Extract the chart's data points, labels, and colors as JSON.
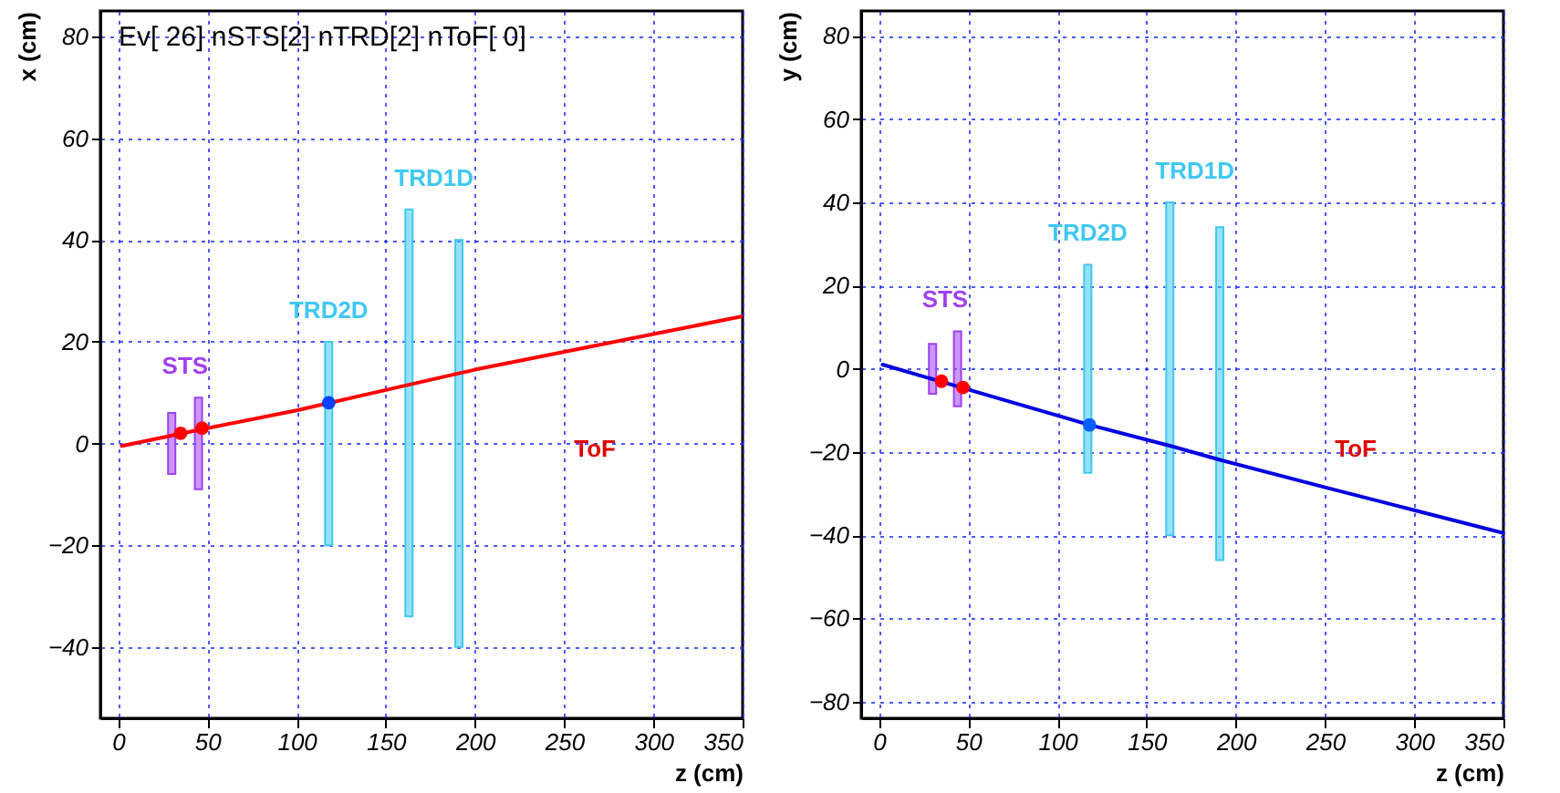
{
  "chart_data": [
    {
      "type": "line",
      "title": "Ev[ 26] nSTS[2] nTRD[2] nToF[ 0]",
      "xlabel": "z (cm)",
      "ylabel": "x (cm)",
      "xlim": [
        -10,
        350
      ],
      "ylim": [
        -54,
        85
      ],
      "xticks": [
        0,
        50,
        100,
        150,
        200,
        250,
        300,
        350
      ],
      "yticks": [
        -40,
        -20,
        0,
        20,
        40,
        60,
        80
      ],
      "grid": true,
      "annotations": [
        "ToF"
      ],
      "series": [
        {
          "type": "bar",
          "name": "STS",
          "color": "#a040f0",
          "x": [
            30,
            45
          ],
          "base": [
            -6,
            -9
          ],
          "values": [
            12,
            18
          ]
        },
        {
          "type": "bar",
          "name": "TRD2D",
          "color": "#40c8f0",
          "x": [
            118
          ],
          "base": [
            -20
          ],
          "values": [
            40
          ]
        },
        {
          "type": "bar",
          "name": "TRD1D",
          "color": "#40c8f0",
          "x": [
            163,
            191
          ],
          "base": [
            -34,
            -40
          ],
          "values": [
            80,
            80
          ]
        },
        {
          "color": "#ff0000",
          "x": [
            2,
            50,
            100,
            150,
            200,
            250,
            300,
            350
          ],
          "values": [
            -0.5,
            3,
            6.5,
            10.5,
            14.5,
            18,
            21.5,
            25
          ]
        },
        {
          "type": "scatter",
          "marker": "circle",
          "color": "#ff0000",
          "x": [
            35,
            47
          ],
          "values": [
            2,
            3
          ]
        },
        {
          "type": "scatter",
          "marker": "circle",
          "color": "#0040ff",
          "x": [
            118
          ],
          "values": [
            8
          ]
        }
      ]
    },
    {
      "type": "line",
      "xlabel": "z (cm)",
      "ylabel": "y (cm)",
      "xlim": [
        -10,
        350
      ],
      "ylim": [
        -84,
        86
      ],
      "xticks": [
        0,
        50,
        100,
        150,
        200,
        250,
        300,
        350
      ],
      "yticks": [
        -80,
        -60,
        -40,
        -20,
        0,
        20,
        40,
        60,
        80
      ],
      "grid": true,
      "annotations": [
        "ToF"
      ],
      "series": [
        {
          "type": "bar",
          "name": "STS",
          "color": "#a040f0",
          "x": [
            30,
            44
          ],
          "base": [
            -6,
            -9
          ],
          "values": [
            12,
            18
          ]
        },
        {
          "type": "bar",
          "name": "TRD2D",
          "color": "#40c8f0",
          "x": [
            117
          ],
          "base": [
            -25
          ],
          "values": [
            50
          ]
        },
        {
          "type": "bar",
          "name": "TRD1D",
          "color": "#40c8f0",
          "x": [
            163,
            191
          ],
          "base": [
            -40,
            -46
          ],
          "values": [
            80,
            80
          ]
        },
        {
          "color": "#0000e0",
          "x": [
            2,
            50,
            118,
            163,
            192,
            250,
            300,
            350
          ],
          "values": [
            1,
            -5,
            -13.5,
            -18.5,
            -22,
            -28.5,
            -34,
            -39.5
          ]
        },
        {
          "type": "scatter",
          "marker": "circle",
          "color": "#ff0000",
          "x": [
            35,
            47
          ],
          "values": [
            -3,
            -4.5
          ]
        },
        {
          "type": "scatter",
          "marker": "circle",
          "color": "#0060ff",
          "x": [
            118
          ],
          "values": [
            -13.5
          ]
        }
      ]
    }
  ]
}
